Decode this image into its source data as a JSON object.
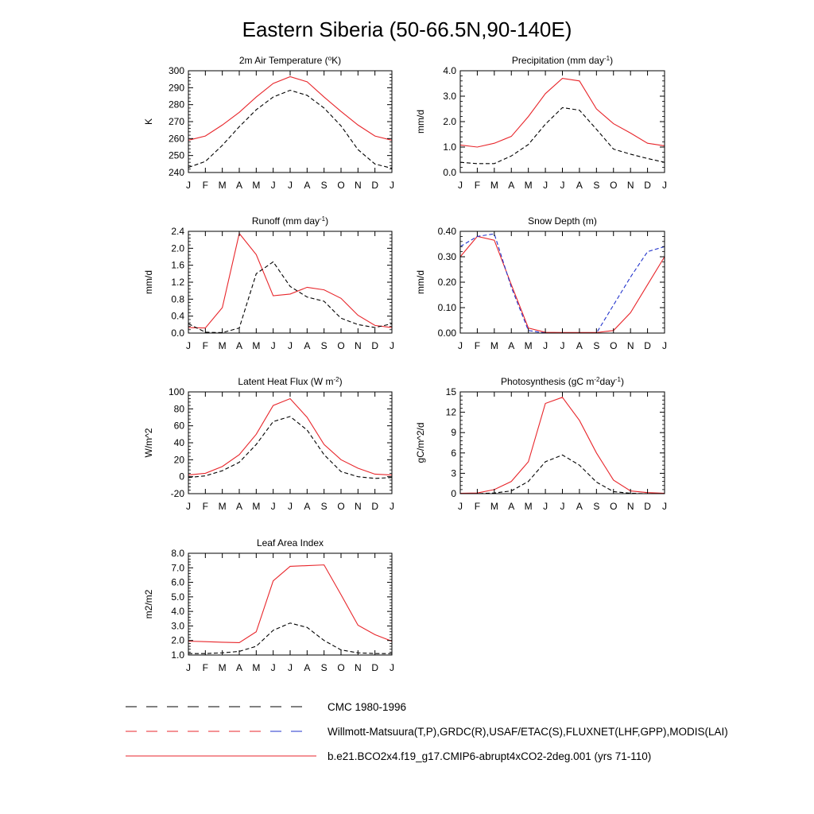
{
  "title": "Eastern Siberia (50-66.5N,90-140E)",
  "months": [
    "J",
    "F",
    "M",
    "A",
    "M",
    "J",
    "J",
    "A",
    "S",
    "O",
    "N",
    "D",
    "J"
  ],
  "colors": {
    "model": "#e8262b",
    "obs": "#000000",
    "obs_alt": "#2233cc"
  },
  "legend": [
    {
      "label": "CMC 1980-1996",
      "style": "dashed",
      "colors": [
        "#000000"
      ]
    },
    {
      "label": "Willmott-Matsuura(T,P),GRDC(R),USAF/ETAC(S),FLUXNET(LHF,GPP),MODIS(LAI)",
      "style": "dashed",
      "colors": [
        "#e8262b",
        "#2233cc"
      ]
    },
    {
      "label": "b.e21.BCO2x4.f19_g17.CMIP6-abrupt4xCO2-2deg.001 (yrs 71-110)",
      "style": "solid",
      "colors": [
        "#e8262b"
      ]
    }
  ],
  "chart_data": [
    {
      "type": "line",
      "title": "2m Air Temperature (",
      "title_sup": "o",
      "title_after": "K)",
      "ylabel": "K",
      "ylim": [
        240,
        300
      ],
      "yticks": [
        240,
        250,
        260,
        270,
        280,
        290,
        300
      ],
      "ytick_labels": [
        "240",
        "250",
        "260",
        "270",
        "280",
        "290",
        "300"
      ],
      "series": [
        {
          "style": "solid",
          "color": "#e8262b",
          "values": [
            259,
            261.5,
            268,
            275.5,
            284.5,
            292.5,
            296.5,
            293.5,
            284.5,
            276,
            268,
            261.5,
            259
          ]
        },
        {
          "style": "dashed",
          "color": "#000000",
          "values": [
            243,
            246.5,
            256,
            267,
            277,
            284.5,
            288.5,
            285.5,
            278,
            267.5,
            253.5,
            245,
            242.5
          ]
        }
      ]
    },
    {
      "type": "line",
      "title": "Precipitation (mm day",
      "title_sup": "-1",
      "title_after": ")",
      "ylabel": "mm/d",
      "ylim": [
        0,
        4
      ],
      "yticks": [
        0,
        1,
        2,
        3,
        4
      ],
      "ytick_labels": [
        "0.0",
        "1.0",
        "2.0",
        "3.0",
        "4.0"
      ],
      "series": [
        {
          "style": "solid",
          "color": "#e8262b",
          "values": [
            1.08,
            1.0,
            1.15,
            1.42,
            2.2,
            3.1,
            3.7,
            3.6,
            2.5,
            1.92,
            1.55,
            1.15,
            1.05
          ]
        },
        {
          "style": "dashed",
          "color": "#000000",
          "values": [
            0.4,
            0.35,
            0.35,
            0.65,
            1.1,
            1.9,
            2.55,
            2.45,
            1.7,
            0.92,
            0.72,
            0.55,
            0.4
          ]
        }
      ]
    },
    {
      "type": "line",
      "title": "Runoff (mm day",
      "title_sup": "-1",
      "title_after": ")",
      "ylabel": "mm/d",
      "ylim": [
        0,
        2.4
      ],
      "yticks": [
        0,
        0.4,
        0.8,
        1.2,
        1.6,
        2.0,
        2.4
      ],
      "ytick_labels": [
        "0.0",
        "0.4",
        "0.8",
        "1.2",
        "1.6",
        "2.0",
        "2.4"
      ],
      "series": [
        {
          "style": "solid",
          "color": "#e8262b",
          "values": [
            0.13,
            0.12,
            0.6,
            2.35,
            1.85,
            0.88,
            0.92,
            1.08,
            1.02,
            0.82,
            0.42,
            0.18,
            0.13
          ]
        },
        {
          "style": "dashed",
          "color": "#000000",
          "values": [
            0.22,
            0.02,
            0.01,
            0.12,
            1.4,
            1.68,
            1.1,
            0.85,
            0.75,
            0.35,
            0.2,
            0.13,
            0.22
          ]
        }
      ]
    },
    {
      "type": "line",
      "title": "Snow Depth (m)",
      "title_sup": "",
      "title_after": "",
      "ylabel": "mm/d",
      "ylim": [
        0,
        0.4
      ],
      "yticks": [
        0,
        0.1,
        0.2,
        0.3,
        0.4
      ],
      "ytick_labels": [
        "0.00",
        "0.10",
        "0.20",
        "0.30",
        "0.40"
      ],
      "series": [
        {
          "style": "solid",
          "color": "#e8262b",
          "values": [
            0.3,
            0.38,
            0.365,
            0.19,
            0.02,
            0.003,
            0.002,
            0.002,
            0.002,
            0.01,
            0.08,
            0.19,
            0.3
          ]
        },
        {
          "style": "dashed",
          "color": "#2233cc",
          "values": [
            0.34,
            0.38,
            0.39,
            0.18,
            0.01,
            0.0,
            0.0,
            0.0,
            0.0,
            0.11,
            0.22,
            0.32,
            0.34
          ]
        },
        {
          "style": "dashed",
          "color": "#000000",
          "values": [
            0.0,
            0.0,
            0.0,
            0.0,
            0.0,
            0.0,
            0.0,
            0.0,
            0.0,
            0.0,
            0.0,
            0.0,
            0.0
          ]
        }
      ]
    },
    {
      "type": "line",
      "title": "Latent Heat Flux (W m",
      "title_sup": "-2",
      "title_after": ")",
      "ylabel": "W/m^2",
      "ylim": [
        -20,
        100
      ],
      "yticks": [
        -20,
        0,
        20,
        40,
        60,
        80,
        100
      ],
      "ytick_labels": [
        "-20",
        "0",
        "20",
        "40",
        "60",
        "80",
        "100"
      ],
      "series": [
        {
          "style": "solid",
          "color": "#e8262b",
          "values": [
            2,
            4,
            12,
            26,
            50,
            84,
            92,
            70,
            38,
            20,
            10,
            3,
            2
          ]
        },
        {
          "style": "dashed",
          "color": "#000000",
          "values": [
            -1,
            1,
            7,
            17,
            38,
            65,
            71,
            55,
            26,
            6,
            0,
            -2,
            -1
          ]
        }
      ]
    },
    {
      "type": "line",
      "title": "Photosynthesis (gC m",
      "title_sup": "-2",
      "title_after": "day",
      "title_sup2": "-1",
      "title_end": ")",
      "ylabel": "gC/m^2/d",
      "ylim": [
        0,
        15
      ],
      "yticks": [
        0,
        3,
        6,
        9,
        12,
        15
      ],
      "ytick_labels": [
        "0",
        "3",
        "6",
        "9",
        "12",
        "15"
      ],
      "series": [
        {
          "style": "solid",
          "color": "#e8262b",
          "values": [
            0.05,
            0.1,
            0.6,
            1.8,
            4.7,
            13.3,
            14.2,
            10.8,
            6.0,
            2.0,
            0.4,
            0.15,
            0.05
          ]
        },
        {
          "style": "dashed",
          "color": "#000000",
          "values": [
            0.0,
            0.0,
            0.1,
            0.4,
            1.8,
            4.7,
            5.7,
            4.2,
            1.7,
            0.3,
            0.05,
            0.0,
            0.0
          ]
        }
      ]
    },
    {
      "type": "line",
      "title": "Leaf Area Index",
      "title_sup": "",
      "title_after": "",
      "ylabel": "m2/m2",
      "ylim": [
        1,
        8
      ],
      "yticks": [
        1,
        2,
        3,
        4,
        5,
        6,
        7,
        8
      ],
      "ytick_labels": [
        "1.0",
        "2.0",
        "3.0",
        "4.0",
        "5.0",
        "6.0",
        "7.0",
        "8.0"
      ],
      "series": [
        {
          "style": "solid",
          "color": "#e8262b",
          "values": [
            1.95,
            1.92,
            1.88,
            1.85,
            2.6,
            6.1,
            7.1,
            7.15,
            7.2,
            5.15,
            3.05,
            2.4,
            1.95
          ]
        },
        {
          "style": "dashed",
          "color": "#000000",
          "values": [
            1.1,
            1.1,
            1.15,
            1.25,
            1.6,
            2.7,
            3.2,
            2.9,
            2.0,
            1.35,
            1.15,
            1.1,
            1.1
          ]
        }
      ]
    }
  ]
}
